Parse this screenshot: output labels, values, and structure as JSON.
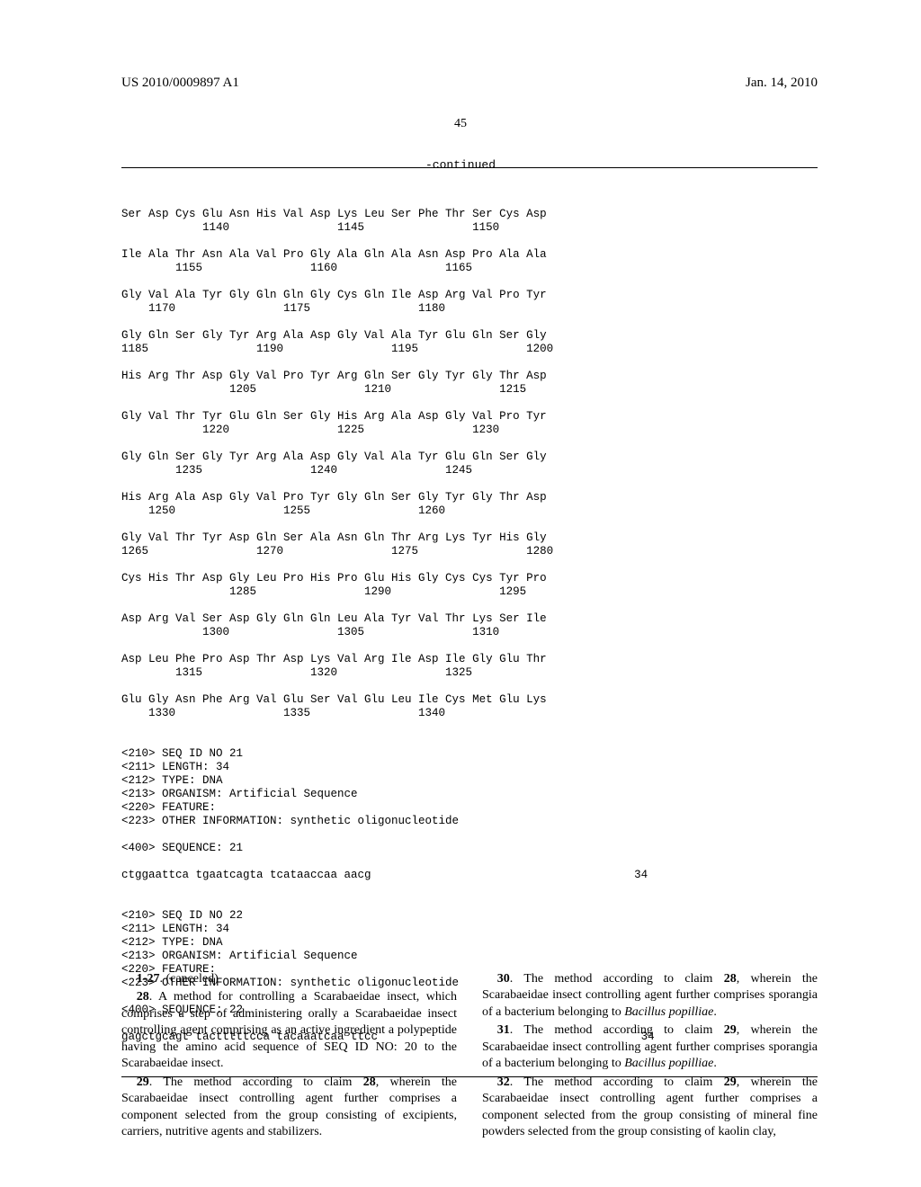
{
  "header": {
    "pub_number": "US 2010/0009897 A1",
    "date": "Jan. 14, 2010"
  },
  "page_number": "45",
  "continued_label": "-continued",
  "sequence_text": "Ser Asp Cys Glu Asn His Val Asp Lys Leu Ser Phe Thr Ser Cys Asp\n            1140                1145                1150\n\nIle Ala Thr Asn Ala Val Pro Gly Ala Gln Ala Asn Asp Pro Ala Ala\n        1155                1160                1165\n\nGly Val Ala Tyr Gly Gln Gln Gly Cys Gln Ile Asp Arg Val Pro Tyr\n    1170                1175                1180\n\nGly Gln Ser Gly Tyr Arg Ala Asp Gly Val Ala Tyr Glu Gln Ser Gly\n1185                1190                1195                1200\n\nHis Arg Thr Asp Gly Val Pro Tyr Arg Gln Ser Gly Tyr Gly Thr Asp\n                1205                1210                1215\n\nGly Val Thr Tyr Glu Gln Ser Gly His Arg Ala Asp Gly Val Pro Tyr\n            1220                1225                1230\n\nGly Gln Ser Gly Tyr Arg Ala Asp Gly Val Ala Tyr Glu Gln Ser Gly\n        1235                1240                1245\n\nHis Arg Ala Asp Gly Val Pro Tyr Gly Gln Ser Gly Tyr Gly Thr Asp\n    1250                1255                1260\n\nGly Val Thr Tyr Asp Gln Ser Ala Asn Gln Thr Arg Lys Tyr His Gly\n1265                1270                1275                1280\n\nCys His Thr Asp Gly Leu Pro His Pro Glu His Gly Cys Cys Tyr Pro\n                1285                1290                1295\n\nAsp Arg Val Ser Asp Gly Gln Gln Leu Ala Tyr Val Thr Lys Ser Ile\n            1300                1305                1310\n\nAsp Leu Phe Pro Asp Thr Asp Lys Val Arg Ile Asp Ile Gly Glu Thr\n        1315                1320                1325\n\nGlu Gly Asn Phe Arg Val Glu Ser Val Glu Leu Ile Cys Met Glu Lys\n    1330                1335                1340\n\n\n<210> SEQ ID NO 21\n<211> LENGTH: 34\n<212> TYPE: DNA\n<213> ORGANISM: Artificial Sequence\n<220> FEATURE:\n<223> OTHER INFORMATION: synthetic oligonucleotide\n\n<400> SEQUENCE: 21\n\nctggaattca tgaatcagta tcataaccaa aacg                                       34\n\n\n<210> SEQ ID NO 22\n<211> LENGTH: 34\n<212> TYPE: DNA\n<213> ORGANISM: Artificial Sequence\n<220> FEATURE:\n<223> OTHER INFORMATION: synthetic oligonucleotide\n\n<400> SEQUENCE: 22\n\ngagctgcagt tactttttcca tacaaatcaa ttcc                                       34",
  "claims": {
    "left": [
      {
        "num": "1-27",
        "text": ". (canceled)"
      },
      {
        "num": "28",
        "text": ". A method for controlling a Scarabaeidae insect, which comprises a step of administering orally a Scarabaeidae insect controlling agent comprising as an active ingredient a polypeptide having the amino acid sequence of SEQ ID NO: 20 to the Scarabaeidae insect."
      },
      {
        "num": "29",
        "text": ". The method according to claim <b>28</b>, wherein the Scarabaeidae insect controlling agent further comprises a component selected from the group consisting of excipients, carriers, nutritive agents and stabilizers."
      }
    ],
    "right": [
      {
        "num": "30",
        "text": ". The method according to claim <b>28</b>, wherein the Scarabaeidae insect controlling agent further comprises sporangia of a bacterium belonging to <i>Bacillus popilliae</i>."
      },
      {
        "num": "31",
        "text": ". The method according to claim <b>29</b>, wherein the Scarabaeidae insect controlling agent further comprises sporangia of a bacterium belonging to <i>Bacillus popilliae</i>."
      },
      {
        "num": "32",
        "text": ". The method according to claim <b>29</b>, wherein the Scarabaeidae insect controlling agent further comprises a component selected from the group consisting of mineral fine powders selected from the group consisting of kaolin clay,"
      }
    ]
  }
}
